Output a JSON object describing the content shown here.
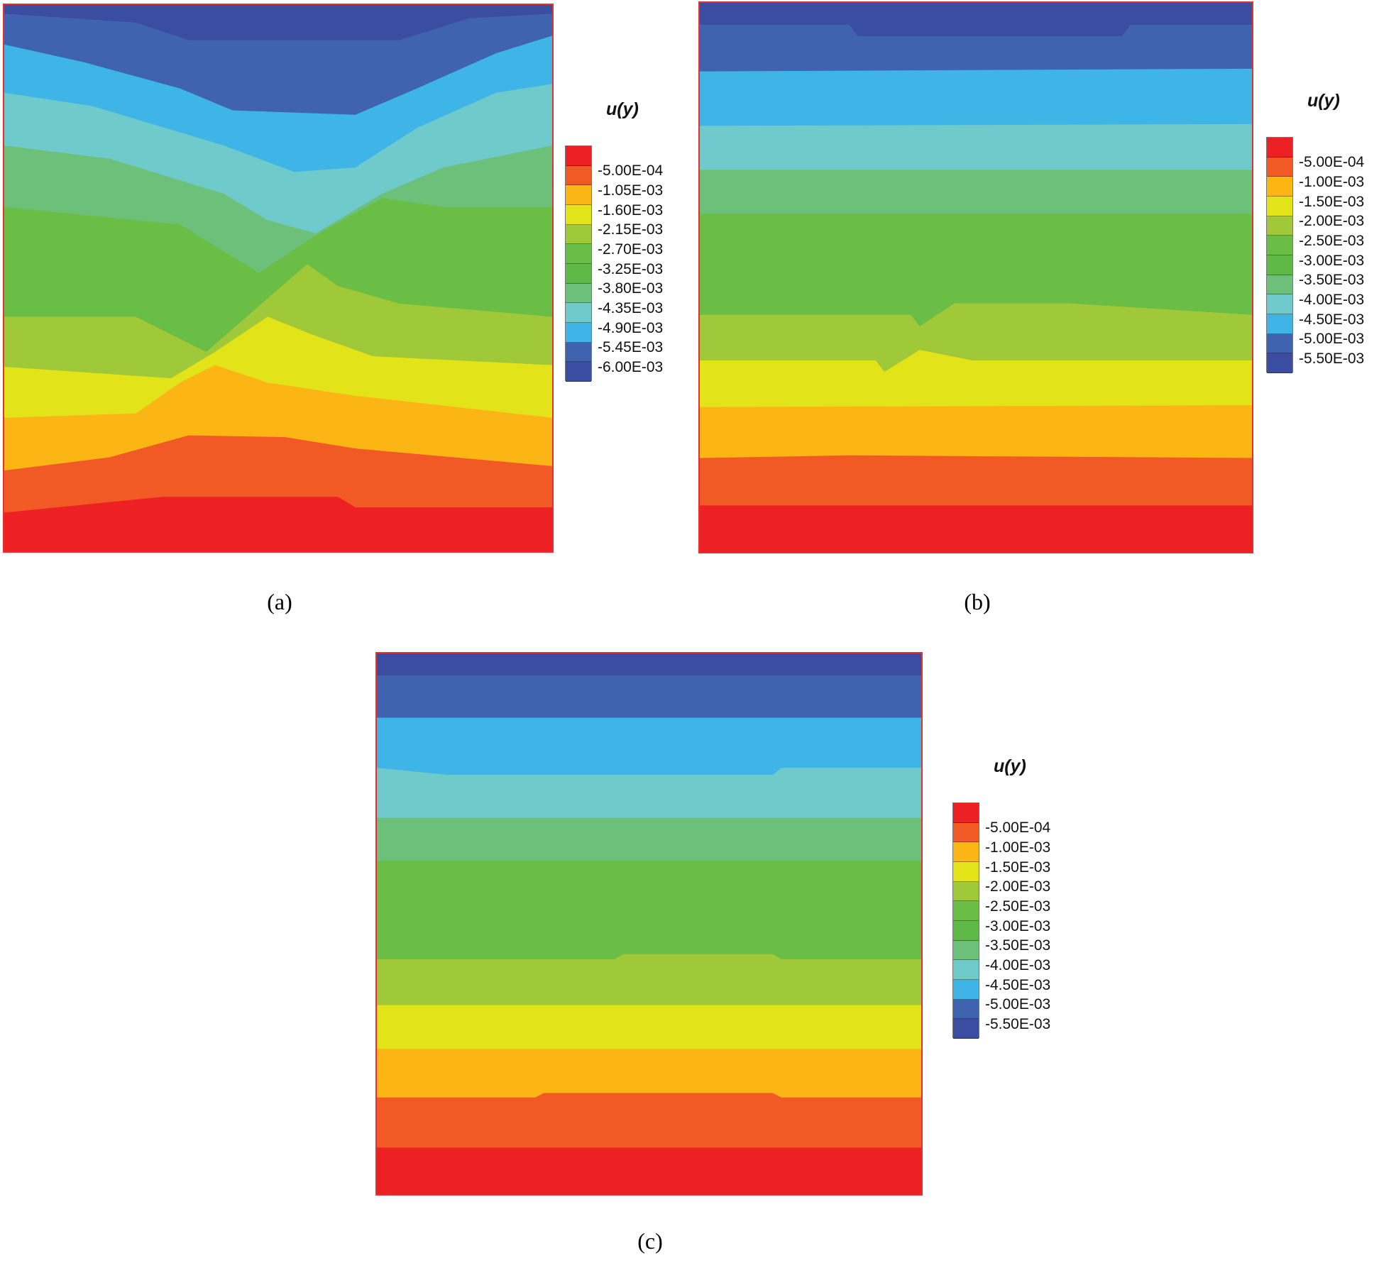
{
  "chart_data": [
    {
      "type": "heatmap",
      "title": "",
      "caption": "(a)",
      "legend_title": "u(y)",
      "legend_placement": "right",
      "levels": [
        "-5.00E-04",
        "-1.05E-03",
        "-1.60E-03",
        "-2.15E-03",
        "-2.70E-03",
        "-3.25E-03",
        "-3.80E-03",
        "-4.35E-03",
        "-4.90E-03",
        "-5.45E-03",
        "-6.00E-03"
      ],
      "level_values": [
        -0.0005,
        -0.00105,
        -0.0016,
        -0.00215,
        -0.0027,
        -0.00325,
        -0.0038,
        -0.00435,
        -0.0049,
        -0.00545,
        -0.006
      ],
      "pattern": "V-shaped contours, minimum displacement at top center"
    },
    {
      "type": "heatmap",
      "title": "",
      "caption": "(b)",
      "legend_title": "u(y)",
      "legend_placement": "right",
      "levels": [
        "-5.00E-04",
        "-1.00E-03",
        "-1.50E-03",
        "-2.00E-03",
        "-2.50E-03",
        "-3.00E-03",
        "-3.50E-03",
        "-4.00E-03",
        "-4.50E-03",
        "-5.00E-03",
        "-5.50E-03"
      ],
      "level_values": [
        -0.0005,
        -0.001,
        -0.0015,
        -0.002,
        -0.0025,
        -0.003,
        -0.0035,
        -0.004,
        -0.0045,
        -0.005,
        -0.0055
      ],
      "pattern": "nearly horizontal bands"
    },
    {
      "type": "heatmap",
      "title": "",
      "caption": "(c)",
      "legend_title": "u(y)",
      "legend_placement": "right",
      "levels": [
        "-5.00E-04",
        "-1.00E-03",
        "-1.50E-03",
        "-2.00E-03",
        "-2.50E-03",
        "-3.00E-03",
        "-3.50E-03",
        "-4.00E-03",
        "-4.50E-03",
        "-5.00E-03",
        "-5.50E-03"
      ],
      "level_values": [
        -0.0005,
        -0.001,
        -0.0015,
        -0.002,
        -0.0025,
        -0.003,
        -0.0035,
        -0.004,
        -0.0045,
        -0.005,
        -0.0055
      ],
      "pattern": "horizontal bands"
    }
  ],
  "colors": {
    "scale": [
      "#ed2024",
      "#f15a24",
      "#fbb615",
      "#e3e31a",
      "#a0c93a",
      "#6abd45",
      "#5fb946",
      "#6dc07a",
      "#6fcbcb",
      "#3fb4e6",
      "#3f63ae",
      "#3a4da0"
    ],
    "bands_top_to_bottom": [
      "#3a4da0",
      "#3f63ae",
      "#3fb4e6",
      "#6fcbcb",
      "#6dc07a",
      "#6abd45",
      "#a0c93a",
      "#e3e31a",
      "#fbb615",
      "#f15a24",
      "#ed2024"
    ],
    "border": "#e53030"
  }
}
